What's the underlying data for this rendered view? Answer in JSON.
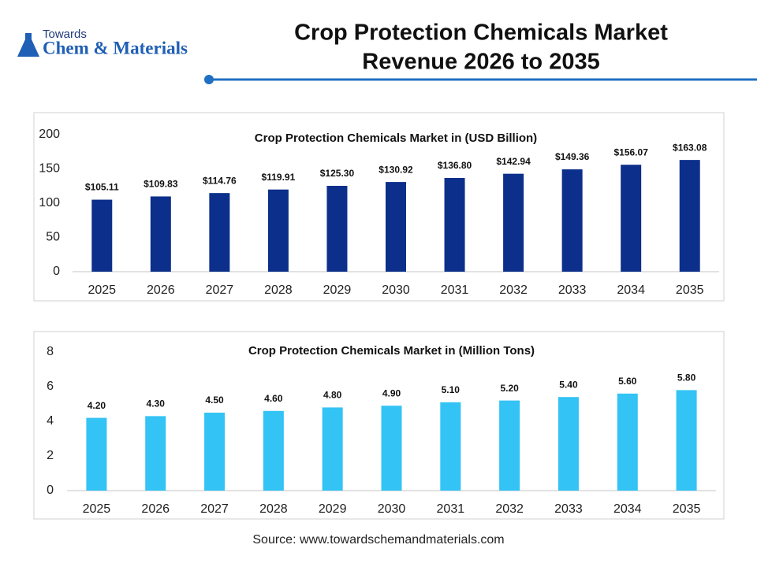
{
  "header": {
    "logo_top": "Towards",
    "logo_main": "Chem & Materials",
    "title": [
      "Crop Protection Chemicals Market",
      "Revenue 2026 to 2035"
    ]
  },
  "chart_data": [
    {
      "type": "bar",
      "title": "Crop Protection Chemicals Market in (USD Billion)",
      "categories": [
        "2025",
        "2026",
        "2027",
        "2028",
        "2029",
        "2030",
        "2031",
        "2032",
        "2033",
        "2034",
        "2035"
      ],
      "values": [
        105.11,
        109.83,
        114.76,
        119.91,
        125.3,
        130.92,
        136.8,
        142.94,
        149.36,
        156.07,
        163.08
      ],
      "value_labels": [
        "$105.11",
        "$109.83",
        "$114.76",
        "$119.91",
        "$125.30",
        "$130.92",
        "$136.80",
        "$142.94",
        "$149.36",
        "$156.07",
        "$163.08"
      ],
      "color": "#0b2f8a",
      "ylim": [
        0,
        200
      ],
      "yticks": [
        0,
        50,
        100,
        150,
        200
      ],
      "grid": false
    },
    {
      "type": "bar",
      "title": "Crop Protection Chemicals Market in (Million Tons)",
      "categories": [
        "2025",
        "2026",
        "2027",
        "2028",
        "2029",
        "2030",
        "2031",
        "2032",
        "2033",
        "2034",
        "2035"
      ],
      "values": [
        4.2,
        4.3,
        4.5,
        4.6,
        4.8,
        4.9,
        5.1,
        5.2,
        5.4,
        5.6,
        5.8
      ],
      "value_labels": [
        "4.20",
        "4.30",
        "4.50",
        "4.60",
        "4.80",
        "4.90",
        "5.10",
        "5.20",
        "5.40",
        "5.60",
        "5.80"
      ],
      "color": "#33c3f5",
      "ylim": [
        0,
        8
      ],
      "yticks": [
        0,
        2,
        4,
        6,
        8
      ],
      "grid": false
    }
  ],
  "source": "Source: www.towardschemandmaterials.com"
}
